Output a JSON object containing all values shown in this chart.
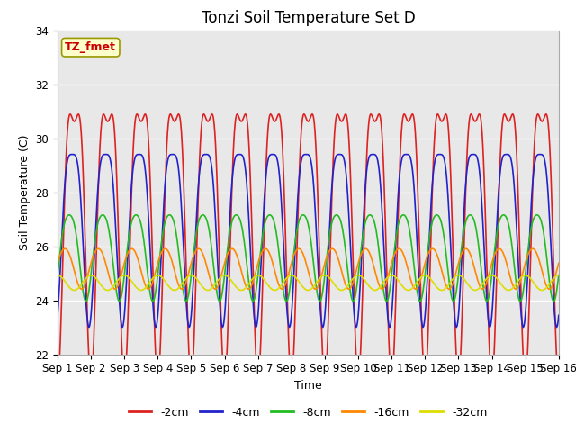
{
  "title": "Tonzi Soil Temperature Set D",
  "xlabel": "Time",
  "ylabel": "Soil Temperature (C)",
  "ylim": [
    22,
    34
  ],
  "xlim": [
    0,
    15
  ],
  "xtick_labels": [
    "Sep 1",
    "Sep 2",
    "Sep 3",
    "Sep 4",
    "Sep 5",
    "Sep 6",
    "Sep 7",
    "Sep 8",
    "Sep 9",
    "Sep 10",
    "Sep 11",
    "Sep 12",
    "Sep 13",
    "Sep 14",
    "Sep 15",
    "Sep 16"
  ],
  "xtick_positions": [
    0,
    1,
    2,
    3,
    4,
    5,
    6,
    7,
    8,
    9,
    10,
    11,
    12,
    13,
    14,
    15
  ],
  "ytick_positions": [
    22,
    24,
    26,
    28,
    30,
    32,
    34
  ],
  "annotation_text": "TZ_fmet",
  "annotation_bg": "#ffffcc",
  "annotation_fg": "#cc0000",
  "annotation_edge": "#999900",
  "series": [
    {
      "label": "-2cm",
      "color": "#dd2222",
      "mean": 27.5,
      "amplitude": 4.8,
      "phase_shift": 0.0,
      "asymmetry": 0.35
    },
    {
      "label": "-4cm",
      "color": "#2222cc",
      "mean": 27.0,
      "amplitude": 3.2,
      "phase_shift": 0.06,
      "asymmetry": 0.25
    },
    {
      "label": "-8cm",
      "color": "#22bb22",
      "mean": 25.8,
      "amplitude": 1.6,
      "phase_shift": 0.15,
      "asymmetry": 0.15
    },
    {
      "label": "-16cm",
      "color": "#ff8800",
      "mean": 25.2,
      "amplitude": 0.75,
      "phase_shift": 0.28,
      "asymmetry": 0.05
    },
    {
      "label": "-32cm",
      "color": "#dddd00",
      "mean": 24.65,
      "amplitude": 0.28,
      "phase_shift": 0.5,
      "asymmetry": 0.0
    }
  ],
  "bg_color": "#e8e8e8",
  "fig_bg": "#ffffff",
  "grid_color": "#ffffff",
  "linewidth": 1.2,
  "title_fontsize": 12,
  "axis_label_fontsize": 9,
  "tick_fontsize": 8.5
}
